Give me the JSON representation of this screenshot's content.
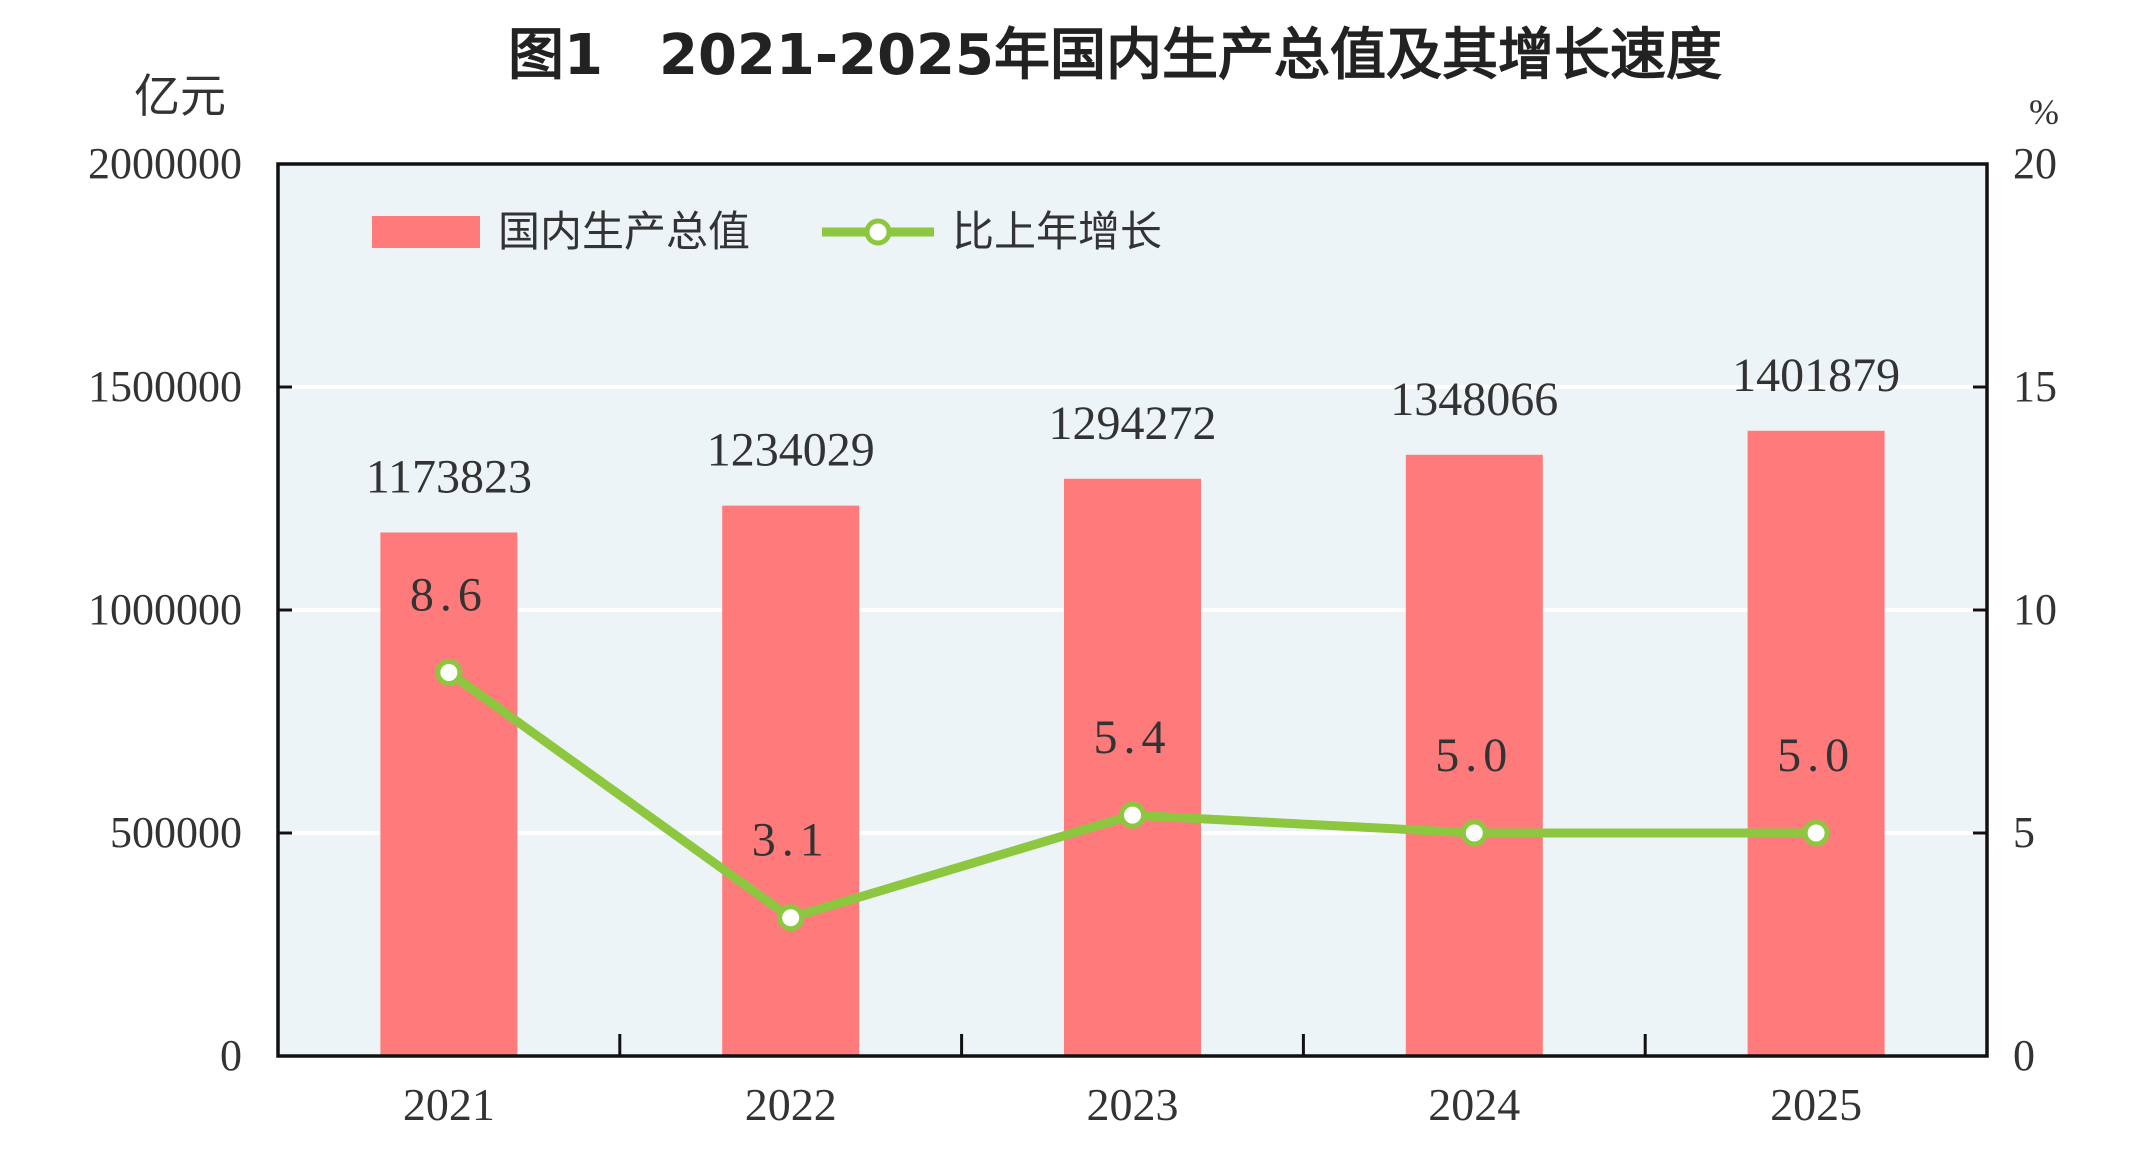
{
  "chart_data": {
    "type": "bar+line",
    "title": "图1　2021-2025年国内生产总值及其增长速度",
    "categories": [
      "2021",
      "2022",
      "2023",
      "2024",
      "2025"
    ],
    "y_left_label": "亿元",
    "y_right_label": "%",
    "y_left_lim": [
      0,
      2000000
    ],
    "y_right_lim": [
      0,
      20
    ],
    "y_left_ticks": [
      "0",
      "500000",
      "1000000",
      "1500000",
      "2000000"
    ],
    "y_right_ticks": [
      "0",
      "5",
      "10",
      "15",
      "20"
    ],
    "grid": true,
    "legend_position": "top-left",
    "series": [
      {
        "name": "国内生产总值",
        "type": "bar",
        "axis": "left",
        "color": "#ff7b7b",
        "values": [
          1173823,
          1234029,
          1294272,
          1348066,
          1401879
        ],
        "labels": [
          "1173823",
          "1234029",
          "1294272",
          "1348066",
          "1401879"
        ]
      },
      {
        "name": "比上年增长",
        "type": "line",
        "axis": "right",
        "color": "#8dc63f",
        "values": [
          8.6,
          3.1,
          5.4,
          5.0,
          5.0
        ],
        "labels": [
          "8.6",
          "3.1",
          "5.4",
          "5.0",
          "5.0"
        ]
      }
    ],
    "plot_background": "#ecf4f8"
  }
}
